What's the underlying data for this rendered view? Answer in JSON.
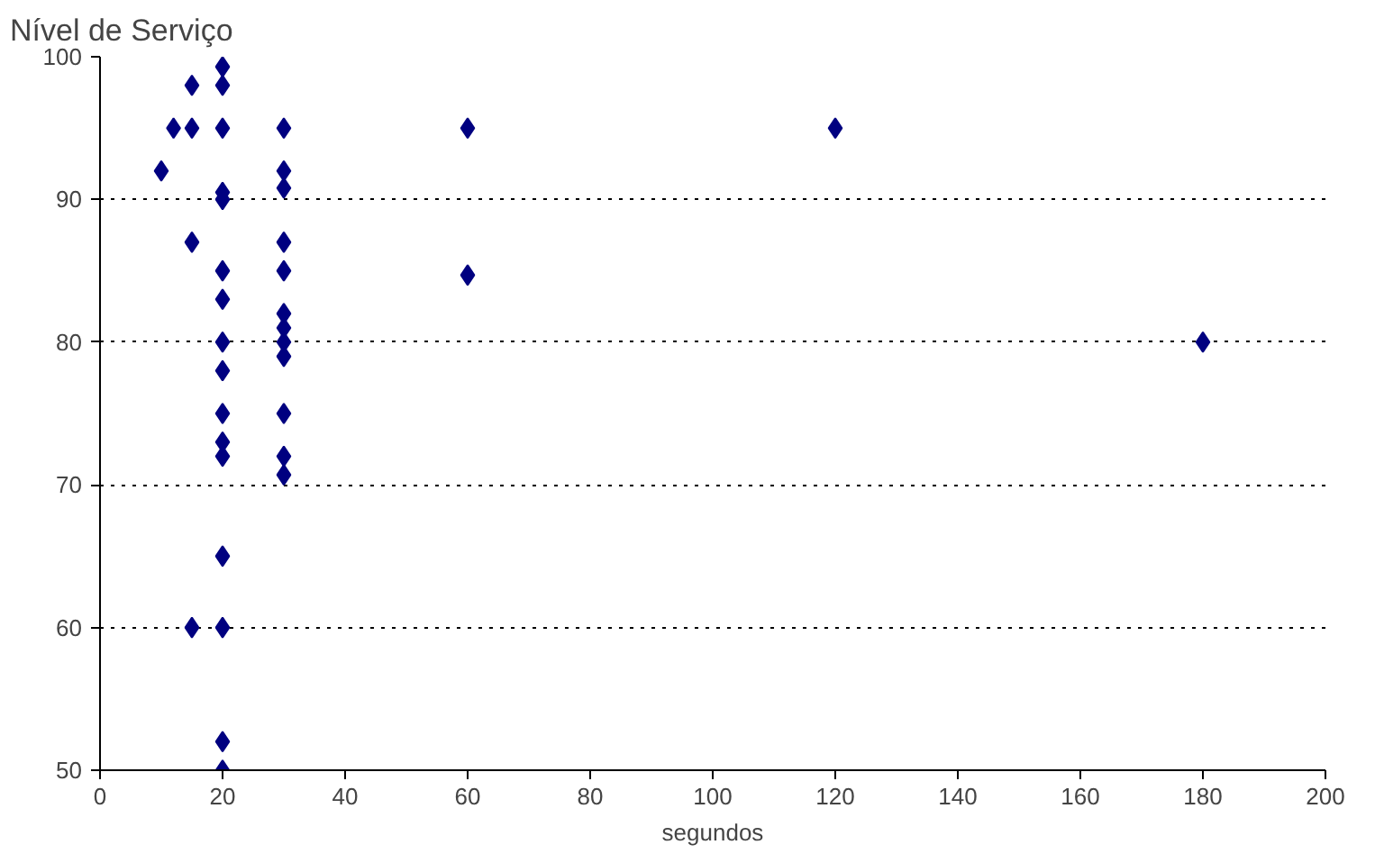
{
  "chart_data": {
    "type": "scatter",
    "title": "Nível de Serviço",
    "xlabel": "segundos",
    "xlim": [
      0,
      200
    ],
    "xticks": [
      0,
      20,
      40,
      60,
      80,
      100,
      120,
      140,
      160,
      180,
      200
    ],
    "ylim": [
      50,
      100
    ],
    "yticks": [
      50,
      60,
      70,
      80,
      90,
      100
    ],
    "grid": "y",
    "marker": "diamond",
    "series": [
      {
        "color": "#000080",
        "x": [
          10,
          12,
          15,
          15,
          15,
          15,
          20,
          20,
          20,
          20,
          20,
          20,
          20,
          20,
          20,
          20,
          20,
          20,
          20,
          20,
          20,
          20,
          30,
          30,
          30,
          30,
          30,
          30,
          30,
          30,
          30,
          30,
          30,
          30,
          60,
          60,
          120,
          180
        ],
        "values": [
          92,
          95,
          98,
          95,
          87,
          60,
          99.3,
          98,
          95,
          90.5,
          90,
          85,
          83,
          80,
          78,
          75,
          73,
          72,
          65,
          60,
          52,
          50,
          95,
          92,
          90.8,
          87,
          85,
          82,
          81,
          80,
          79,
          75,
          72,
          70.7,
          95,
          84.7,
          95,
          80
        ]
      }
    ]
  }
}
